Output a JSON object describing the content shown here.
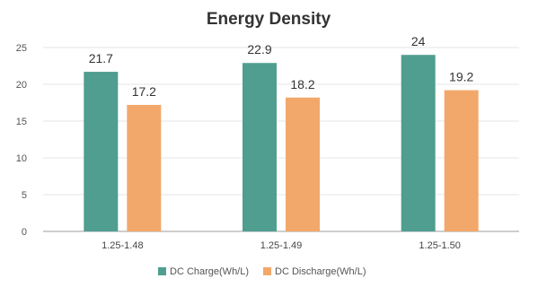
{
  "chart_data": {
    "type": "bar",
    "title": "Energy Density",
    "xlabel": "",
    "ylabel": "",
    "categories": [
      "1.25-1.48",
      "1.25-1.49",
      "1.25-1.50"
    ],
    "series": [
      {
        "name": "DC Charge(Wh/L)",
        "values": [
          21.7,
          22.9,
          24
        ],
        "color": "#4f9e90"
      },
      {
        "name": "DC Discharge(Wh/L)",
        "values": [
          17.2,
          18.2,
          19.2
        ],
        "color": "#f2a86a"
      }
    ],
    "value_labels": [
      [
        "21.7",
        "22.9",
        "24"
      ],
      [
        "17.2",
        "18.2",
        "19.2"
      ]
    ],
    "ylim": [
      0,
      25
    ],
    "yticks": [
      0,
      5,
      10,
      15,
      20,
      25
    ],
    "grid": true,
    "legend_position": "bottom"
  }
}
